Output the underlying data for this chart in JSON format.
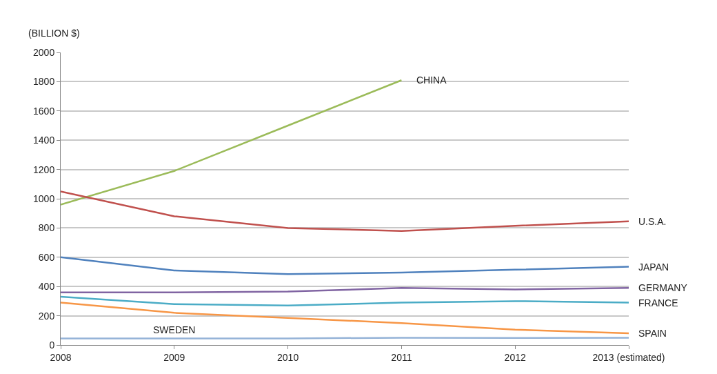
{
  "chart_data": {
    "type": "line",
    "ylabel": "(BILLION $)",
    "categories": [
      "2008",
      "2009",
      "2010",
      "2011",
      "2012",
      "2013 (estimated)"
    ],
    "series": [
      {
        "name": "CHINA",
        "color": "#9bbb59",
        "values": [
          960,
          1190,
          1500,
          1810,
          null,
          null
        ]
      },
      {
        "name": "U.S.A.",
        "color": "#c0504d",
        "values": [
          1050,
          880,
          800,
          780,
          815,
          845
        ]
      },
      {
        "name": "JAPAN",
        "color": "#4f81bd",
        "values": [
          600,
          510,
          485,
          495,
          515,
          535
        ]
      },
      {
        "name": "GERMANY",
        "color": "#8064a2",
        "values": [
          360,
          360,
          365,
          390,
          380,
          390
        ]
      },
      {
        "name": "FRANCE",
        "color": "#4bacc6",
        "values": [
          330,
          280,
          270,
          290,
          300,
          290
        ]
      },
      {
        "name": "SPAIN",
        "color": "#f79646",
        "values": [
          290,
          220,
          185,
          150,
          105,
          80
        ]
      },
      {
        "color": "#95b3d7",
        "values": [
          45,
          45,
          45,
          50,
          48,
          50
        ]
      }
    ],
    "annotations": [
      {
        "text": "SWEDEN",
        "x": "2009",
        "y": 45
      }
    ],
    "ylim": [
      0,
      2000
    ],
    "yticks": [
      0,
      200,
      400,
      600,
      800,
      1000,
      1200,
      1400,
      1600,
      1800,
      2000
    ],
    "grid": "y",
    "legend": false,
    "marker": "none",
    "line_style": "solid"
  }
}
